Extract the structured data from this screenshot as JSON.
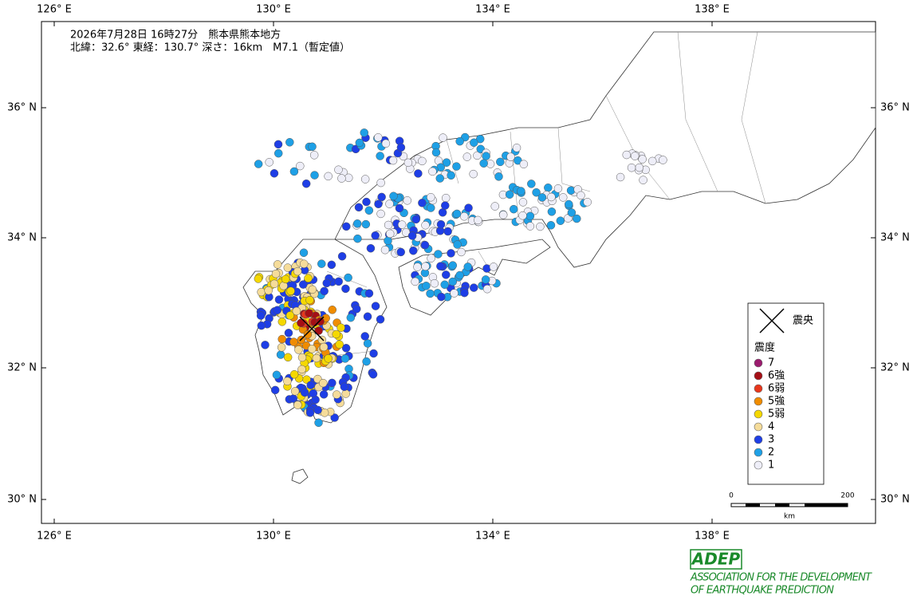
{
  "header": {
    "line1": "2026年7月28日 16時27分　熊本県熊本地方",
    "line2": "北緯：32.6° 東経：130.7° 深さ：16km　M7.1（暫定値）"
  },
  "axes": {
    "lon": [
      "126° E",
      "130° E",
      "134° E",
      "138° E"
    ],
    "lat": [
      "36° N",
      "34° N",
      "32° N",
      "30° N"
    ]
  },
  "legend": {
    "epicenter": "震央",
    "title": "震度",
    "items": [
      {
        "label": "7",
        "color": "#9b1b6e"
      },
      {
        "label": "6強",
        "color": "#a50f15"
      },
      {
        "label": "6弱",
        "color": "#e8361b"
      },
      {
        "label": "5強",
        "color": "#f08c00"
      },
      {
        "label": "5弱",
        "color": "#f5d800"
      },
      {
        "label": "4",
        "color": "#f5dc9a"
      },
      {
        "label": "3",
        "color": "#1e3ee6"
      },
      {
        "label": "2",
        "color": "#1ea0e6"
      },
      {
        "label": "1",
        "color": "#eeeef8"
      }
    ]
  },
  "scale": {
    "start": "0",
    "end": "200",
    "unit": "km"
  },
  "logo": {
    "mark": "ADEP",
    "line1": "ASSOCIATION FOR THE DEVELOPMENT",
    "line2": "OF EARTHQUAKE PREDICTION"
  }
}
